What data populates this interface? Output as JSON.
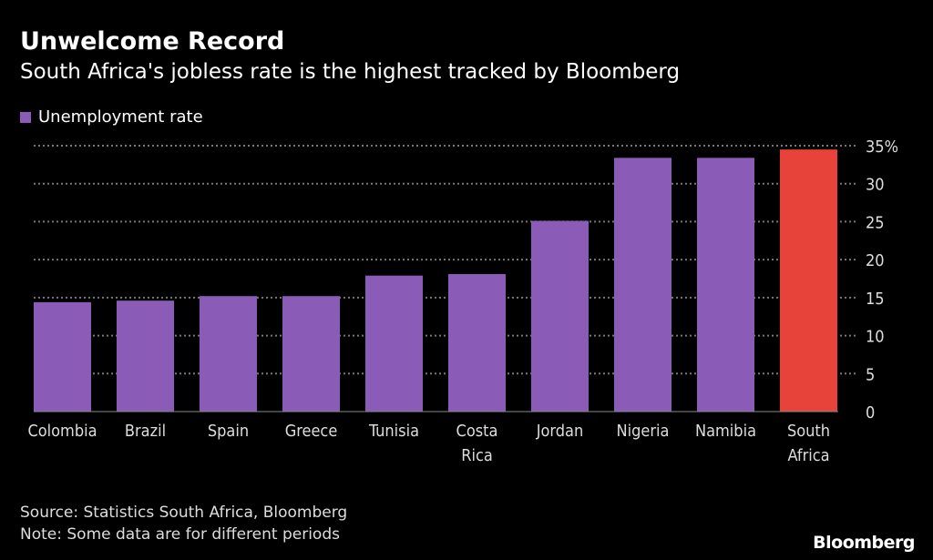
{
  "title": "Unwelcome Record",
  "subtitle": "South Africa's jobless rate is the highest tracked by Bloomberg",
  "source": "Source: Statistics South Africa, Bloomberg",
  "note": "Note: Some data are for different periods",
  "brand": "Bloomberg",
  "chart_data": {
    "type": "bar",
    "title": "Unwelcome Record",
    "subtitle": "South Africa's jobless rate is the highest tracked by Bloomberg",
    "categories": [
      "Colombia",
      "Brazil",
      "Spain",
      "Greece",
      "Tunisia",
      "Costa Rica",
      "Jordan",
      "Nigeria",
      "Namibia",
      "South Africa"
    ],
    "category_lines": [
      [
        "Colombia"
      ],
      [
        "Brazil"
      ],
      [
        "Spain"
      ],
      [
        "Greece"
      ],
      [
        "Tunisia"
      ],
      [
        "Costa",
        "Rica"
      ],
      [
        "Jordan"
      ],
      [
        "Nigeria"
      ],
      [
        "Namibia"
      ],
      [
        "South",
        "Africa"
      ]
    ],
    "series": [
      {
        "name": "Unemployment rate",
        "values": [
          14.4,
          14.6,
          15.2,
          15.2,
          17.9,
          18.1,
          25.1,
          33.4,
          33.4,
          34.5
        ]
      }
    ],
    "highlight": "South Africa",
    "colors": {
      "bar": "#8a5cb8",
      "highlight": "#e8433a",
      "grid": "#777777"
    },
    "ylim": [
      0,
      35
    ],
    "yticks": [
      0,
      5,
      10,
      15,
      20,
      25,
      30,
      35
    ],
    "ytick_labels": [
      "0",
      "5",
      "10",
      "15",
      "20",
      "25",
      "30",
      "35%"
    ],
    "y_axis_position": "right",
    "grid": true,
    "legend": "top-left"
  }
}
